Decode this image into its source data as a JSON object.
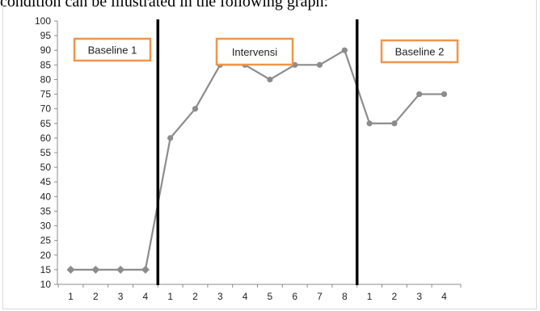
{
  "page": {
    "text_above": "condition can be illustrated in the following graph:"
  },
  "chart_data": {
    "type": "line",
    "ylim": [
      10,
      100
    ],
    "yticks": [
      10,
      15,
      20,
      25,
      30,
      35,
      40,
      45,
      50,
      55,
      60,
      65,
      70,
      75,
      80,
      85,
      90,
      95,
      100
    ],
    "categories": [
      "1",
      "2",
      "3",
      "4",
      "1",
      "2",
      "3",
      "4",
      "5",
      "6",
      "7",
      "8",
      "1",
      "2",
      "3",
      "4"
    ],
    "values": [
      15,
      15,
      15,
      15,
      60,
      70,
      85,
      85,
      80,
      85,
      85,
      90,
      65,
      65,
      75,
      75
    ],
    "phases": [
      {
        "label": "Baseline 1",
        "start_index": 0,
        "end_index": 3
      },
      {
        "label": "Intervensi",
        "start_index": 4,
        "end_index": 11
      },
      {
        "label": "Baseline 2",
        "start_index": 12,
        "end_index": 15
      }
    ],
    "phase_dividers_after_index": [
      3,
      11
    ],
    "line_color": "#8c8c8c",
    "divider_color": "#000000",
    "label_box_color": "#f0954a",
    "grid": false,
    "legend": "none"
  }
}
